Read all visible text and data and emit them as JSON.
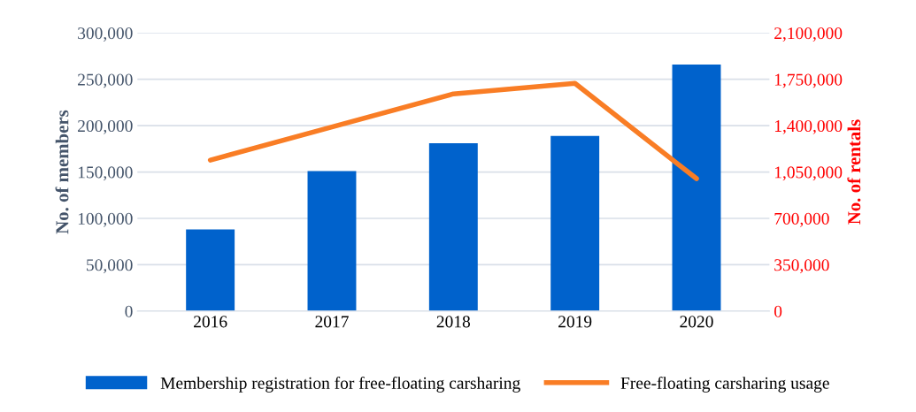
{
  "chart_data": {
    "type": "bar",
    "categories": [
      "2016",
      "2017",
      "2018",
      "2019",
      "2020"
    ],
    "ylabel": "No. of members",
    "y2label": "No. of rentals",
    "series": [
      {
        "name": "Membership registration for free-floating carsharing",
        "color": "#0062cc",
        "values": [
          88000,
          151000,
          181000,
          189000,
          266000
        ]
      },
      {
        "name": "Free-floating carsharing usage",
        "type": "line",
        "axis": "y2",
        "color": "#f97d25",
        "values": [
          1140000,
          1390000,
          1640000,
          1720000,
          1000000
        ]
      }
    ],
    "ylim": [
      0,
      300000
    ],
    "yticks": [
      {
        "value": 0,
        "label": "0"
      },
      {
        "value": 50000,
        "label": "50,000"
      },
      {
        "value": 100000,
        "label": "100,000"
      },
      {
        "value": 150000,
        "label": "150,000"
      },
      {
        "value": 200000,
        "label": "200,000"
      },
      {
        "value": 250000,
        "label": "250,000"
      },
      {
        "value": 300000,
        "label": "300,000"
      }
    ],
    "y2lim": [
      0,
      2100000
    ],
    "y2ticks": [
      {
        "value": 0,
        "label": "0"
      },
      {
        "value": 350000,
        "label": "350,000"
      },
      {
        "value": 700000,
        "label": "700,000"
      },
      {
        "value": 1050000,
        "label": "1,050,000"
      },
      {
        "value": 1400000,
        "label": "1,400,000"
      },
      {
        "value": 1750000,
        "label": "1,750,000"
      },
      {
        "value": 2100000,
        "label": "2,100,000"
      }
    ],
    "grid": "y",
    "legend": "bottom",
    "marker": "none",
    "line_style": "solid"
  }
}
